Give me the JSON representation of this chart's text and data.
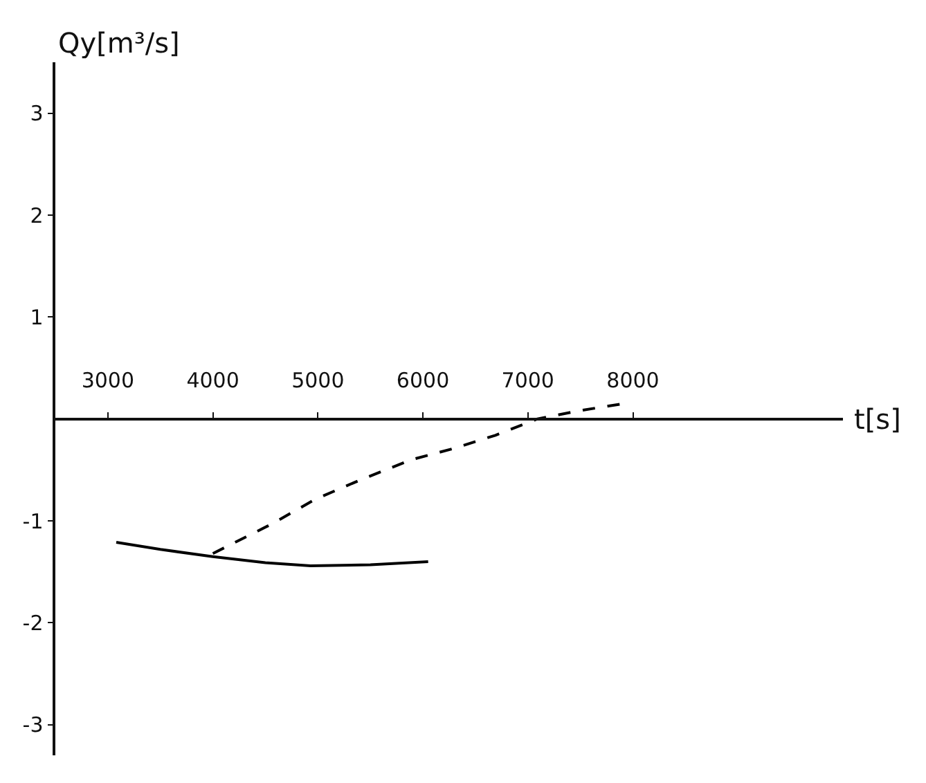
{
  "chart_data": {
    "type": "line",
    "xlabel": "t[s]",
    "ylabel": "Qy[m³/s]",
    "xlim": [
      2500,
      10000
    ],
    "ylim": [
      -3.3,
      3.5
    ],
    "xticks": [
      3000,
      4000,
      5000,
      6000,
      7000,
      8000
    ],
    "yticks": [
      -3,
      -2,
      -1,
      1,
      2,
      3
    ],
    "grid": false,
    "marker": "none",
    "series": [
      {
        "color": "#000000",
        "line_style": "solid",
        "x": [
          3080,
          3500,
          4000,
          4500,
          4930,
          5500,
          6050
        ],
        "values": [
          -1.21,
          -1.28,
          -1.35,
          -1.41,
          -1.44,
          -1.43,
          -1.4
        ]
      },
      {
        "color": "#000000",
        "line_style": "dashed",
        "x": [
          4000,
          4580,
          4970,
          5400,
          5890,
          6290,
          6690,
          7090,
          7480,
          7910
        ],
        "values": [
          -1.32,
          -1.02,
          -0.79,
          -0.6,
          -0.4,
          -0.29,
          -0.16,
          0,
          0.08,
          0.15
        ]
      }
    ]
  }
}
